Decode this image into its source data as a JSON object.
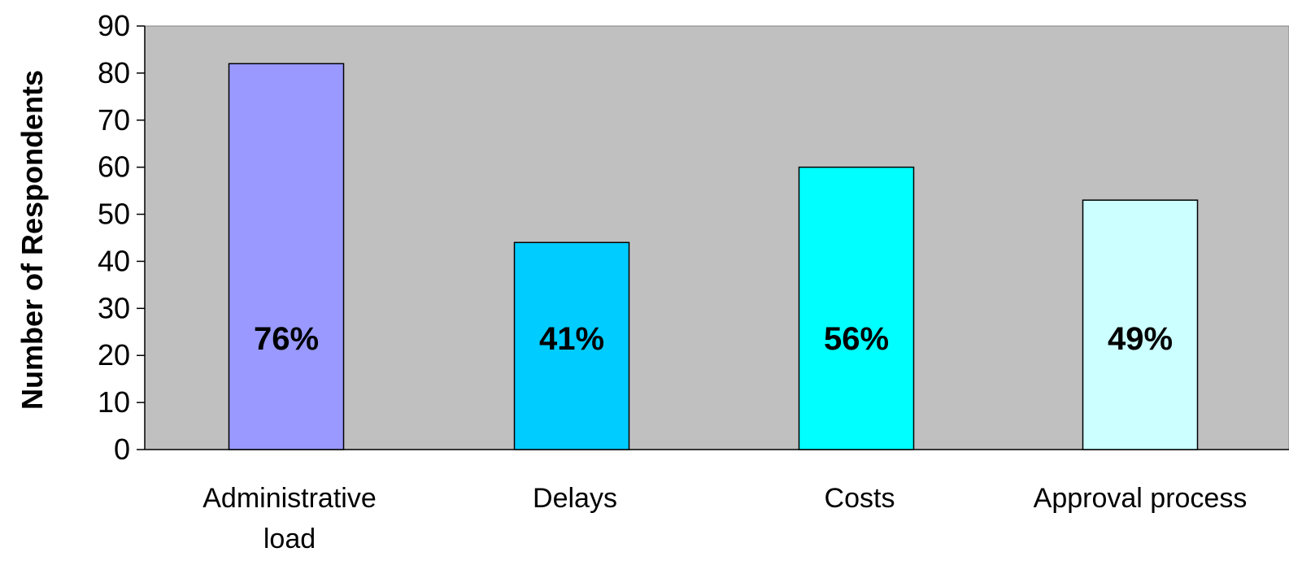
{
  "chart_data": {
    "type": "bar",
    "title": "",
    "xlabel": "",
    "ylabel": "Number of Respondents",
    "ylim": [
      0,
      90
    ],
    "yticks": [
      0,
      10,
      20,
      30,
      40,
      50,
      60,
      70,
      80,
      90
    ],
    "grid": false,
    "legend": "none",
    "categories": [
      [
        "Administrative",
        "load"
      ],
      [
        "Delays"
      ],
      [
        "Costs"
      ],
      [
        "Approval process"
      ]
    ],
    "values": [
      82,
      44,
      60,
      53
    ],
    "data_labels": [
      "76%",
      "41%",
      "56%",
      "49%"
    ],
    "colors": {
      "plot_background": "#c0c0c0",
      "bars": [
        "#9999ff",
        "#00ccff",
        "#00ffff",
        "#ccffff"
      ],
      "bar_outline": "#000000"
    }
  }
}
